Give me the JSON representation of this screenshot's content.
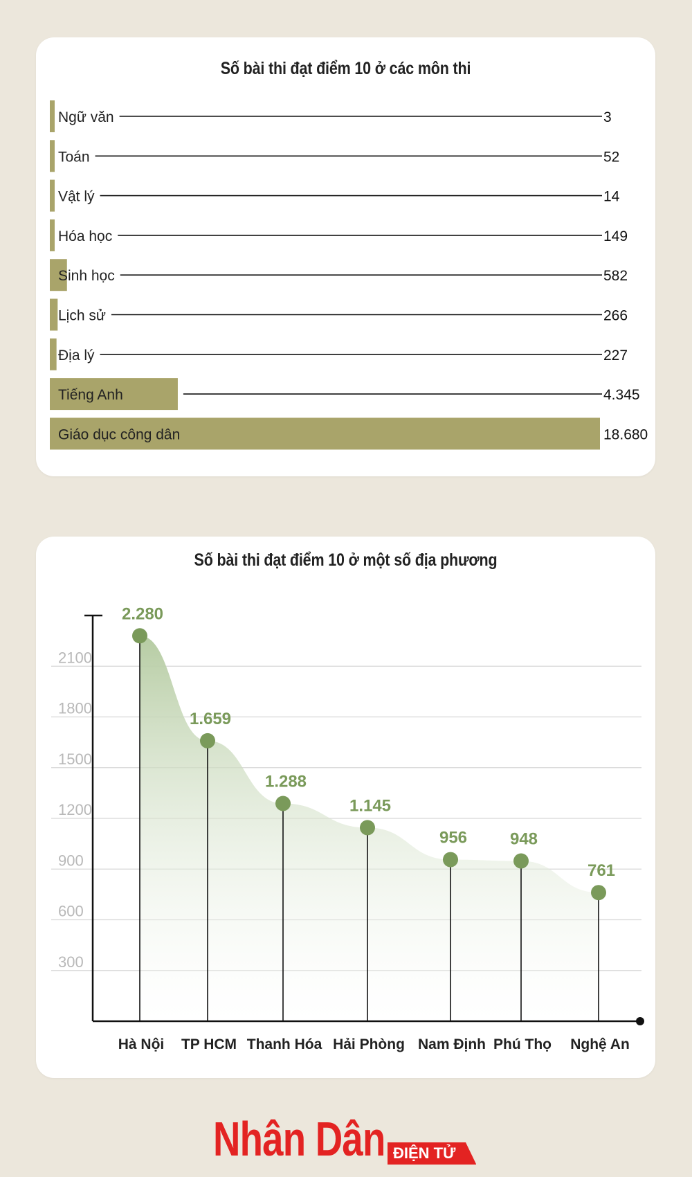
{
  "chart_data": [
    {
      "type": "bar",
      "orientation": "horizontal",
      "title": "Số bài thi đạt điểm 10 ở các môn thi",
      "categories": [
        "Ngữ văn",
        "Toán",
        "Vật lý",
        "Hóa học",
        "Sinh học",
        "Lịch sử",
        "Địa lý",
        "Tiếng Anh",
        "Giáo dục công dân"
      ],
      "values": [
        3,
        52,
        14,
        149,
        582,
        266,
        227,
        4345,
        18680
      ],
      "value_labels": [
        "3",
        "52",
        "14",
        "149",
        "582",
        "266",
        "227",
        "4.345",
        "18.680"
      ],
      "bar_color": "#a9a46a"
    },
    {
      "type": "area",
      "title": "Số bài thi đạt điểm 10 ở một số địa phương",
      "categories": [
        "Hà Nội",
        "TP HCM",
        "Thanh Hóa",
        "Hải Phòng",
        "Nam Định",
        "Phú Thọ",
        "Nghệ An"
      ],
      "values": [
        2280,
        1659,
        1288,
        1145,
        956,
        948,
        761
      ],
      "value_labels": [
        "2.280",
        "1.659",
        "1.288",
        "1.145",
        "956",
        "948",
        "761"
      ],
      "y_ticks": [
        300,
        600,
        900,
        1200,
        1500,
        1800,
        2100
      ],
      "ylim": [
        0,
        2400
      ],
      "grid": true,
      "accent_color": "#7a9a5a",
      "area_color": "#b6cca3"
    }
  ],
  "logo": {
    "main": "Nhân Dân",
    "sub": "ĐIỆN TỬ"
  }
}
